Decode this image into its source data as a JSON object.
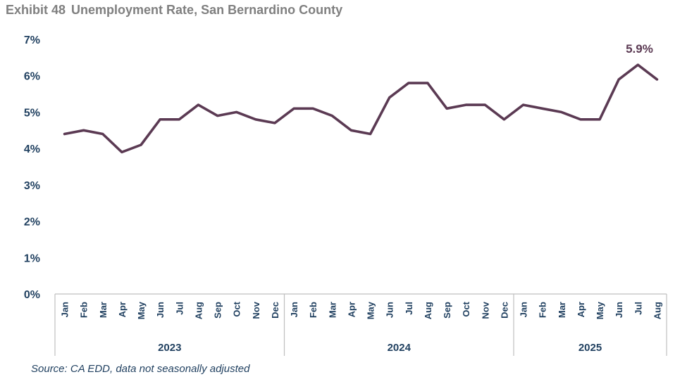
{
  "exhibit_label": "Exhibit 48",
  "title_text": "Unemployment Rate, San Bernardino County",
  "source": "Source: CA EDD, data not seasonally adjusted",
  "colors": {
    "line": "#5b3a53",
    "axis_text": "#1f3f5f",
    "title": "#7f7f7f",
    "axis_line": "#bfbfbf"
  },
  "chart_data": {
    "type": "line",
    "title": "Unemployment Rate, San Bernardino County",
    "xlabel": "",
    "ylabel": "",
    "ylim": [
      0,
      7
    ],
    "yticks": [
      "0%",
      "1%",
      "2%",
      "3%",
      "4%",
      "5%",
      "6%",
      "7%"
    ],
    "grid": false,
    "categories": [
      "Jan",
      "Feb",
      "Mar",
      "Apr",
      "May",
      "Jun",
      "Jul",
      "Aug",
      "Sep",
      "Oct",
      "Nov",
      "Dec",
      "Jan",
      "Feb",
      "Mar",
      "Apr",
      "May",
      "Jun",
      "Jul",
      "Aug",
      "Sep",
      "Oct",
      "Nov",
      "Dec",
      "Jan",
      "Feb",
      "Mar",
      "Apr",
      "May",
      "Jun",
      "Jul",
      "Aug"
    ],
    "years": [
      {
        "label": "2023",
        "count": 12
      },
      {
        "label": "2024",
        "count": 12
      },
      {
        "label": "2025",
        "count": 8
      }
    ],
    "series": [
      {
        "name": "Unemployment Rate",
        "values": [
          4.4,
          4.5,
          4.4,
          3.9,
          4.1,
          4.8,
          4.8,
          5.2,
          4.9,
          5.0,
          4.8,
          4.7,
          5.1,
          5.1,
          4.9,
          4.5,
          4.4,
          5.4,
          5.8,
          5.8,
          5.1,
          5.2,
          5.2,
          4.8,
          5.2,
          5.1,
          5.0,
          4.8,
          4.8,
          5.9,
          6.3,
          5.9
        ]
      }
    ],
    "annotations": [
      {
        "index": 31,
        "text": "5.9%"
      }
    ]
  }
}
